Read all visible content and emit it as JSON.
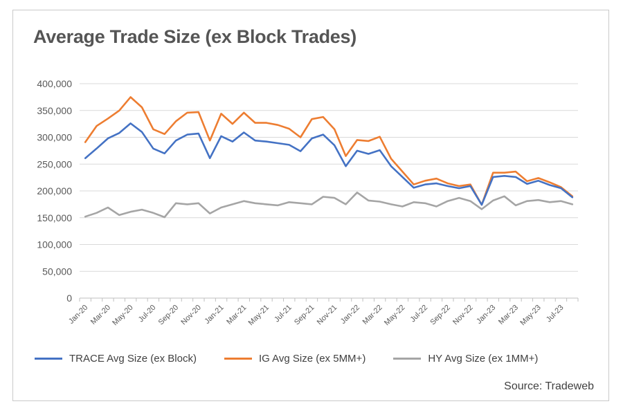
{
  "title": "Average Trade Size (ex Block Trades)",
  "source": "Source: Tradeweb",
  "colors": {
    "trace": "#4472c4",
    "ig": "#ed7d31",
    "hy": "#a5a5a5"
  },
  "chart_data": {
    "type": "line",
    "title": "Average Trade Size (ex Block Trades)",
    "xlabel": "",
    "ylabel": "",
    "ylim": [
      0,
      400000
    ],
    "yticks": [
      0,
      50000,
      100000,
      150000,
      200000,
      250000,
      300000,
      350000,
      400000
    ],
    "ytick_labels": [
      "0",
      "50,000",
      "100,000",
      "150,000",
      "200,000",
      "250,000",
      "300,000",
      "350,000",
      "400,000"
    ],
    "x": [
      "Jan-20",
      "Feb-20",
      "Mar-20",
      "Apr-20",
      "May-20",
      "Jun-20",
      "Jul-20",
      "Aug-20",
      "Sep-20",
      "Oct-20",
      "Nov-20",
      "Dec-20",
      "Jan-21",
      "Feb-21",
      "Mar-21",
      "Apr-21",
      "May-21",
      "Jun-21",
      "Jul-21",
      "Aug-21",
      "Sep-21",
      "Oct-21",
      "Nov-21",
      "Dec-21",
      "Jan-22",
      "Feb-22",
      "Mar-22",
      "Apr-22",
      "May-22",
      "Jun-22",
      "Jul-22",
      "Aug-22",
      "Sep-22",
      "Oct-22",
      "Nov-22",
      "Dec-22",
      "Jan-23",
      "Feb-23",
      "Mar-23",
      "Apr-23",
      "May-23",
      "Jun-23",
      "Jul-23",
      "Aug-23"
    ],
    "x_tick_labels": [
      "Jan-20",
      "Mar-20",
      "May-20",
      "Jul-20",
      "Sep-20",
      "Nov-20",
      "Jan-21",
      "Mar-21",
      "May-21",
      "Jul-21",
      "Sep-21",
      "Nov-21",
      "Jan-22",
      "Mar-22",
      "May-22",
      "Jul-22",
      "Sep-22",
      "Nov-22",
      "Jan-23",
      "Mar-23",
      "May-23",
      "Jul-23"
    ],
    "grid": "horizontal",
    "legend": "bottom",
    "series": [
      {
        "name": "TRACE Avg Size (ex Block)",
        "color": "#4472c4",
        "values": [
          261000,
          279000,
          298000,
          308000,
          326000,
          310000,
          279000,
          270000,
          294000,
          305000,
          307000,
          261000,
          302000,
          292000,
          309000,
          294000,
          292000,
          289000,
          286000,
          274000,
          298000,
          305000,
          285000,
          246000,
          275000,
          269000,
          276000,
          246000,
          226000,
          206000,
          212000,
          214000,
          209000,
          205000,
          209000,
          174000,
          226000,
          228000,
          226000,
          213000,
          219000,
          211000,
          205000,
          188000
        ]
      },
      {
        "name": "IG Avg Size (ex 5MM+)",
        "color": "#ed7d31",
        "values": [
          291000,
          321000,
          335000,
          350000,
          375000,
          356000,
          315000,
          306000,
          330000,
          346000,
          347000,
          294000,
          344000,
          325000,
          346000,
          327000,
          327000,
          323000,
          316000,
          300000,
          334000,
          338000,
          315000,
          265000,
          295000,
          293000,
          301000,
          260000,
          236000,
          212000,
          219000,
          223000,
          214000,
          209000,
          212000,
          174000,
          234000,
          234000,
          236000,
          218000,
          224000,
          216000,
          207000,
          190000
        ]
      },
      {
        "name": "HY Avg  Size (ex 1MM+)",
        "color": "#a5a5a5",
        "values": [
          152000,
          159000,
          169000,
          155000,
          161000,
          165000,
          159000,
          151000,
          177000,
          175000,
          177000,
          158000,
          169000,
          175000,
          181000,
          177000,
          175000,
          173000,
          179000,
          177000,
          175000,
          189000,
          187000,
          175000,
          197000,
          182000,
          180000,
          175000,
          171000,
          179000,
          177000,
          171000,
          181000,
          187000,
          181000,
          166000,
          182000,
          190000,
          173000,
          181000,
          183000,
          179000,
          181000,
          175000
        ]
      }
    ]
  }
}
